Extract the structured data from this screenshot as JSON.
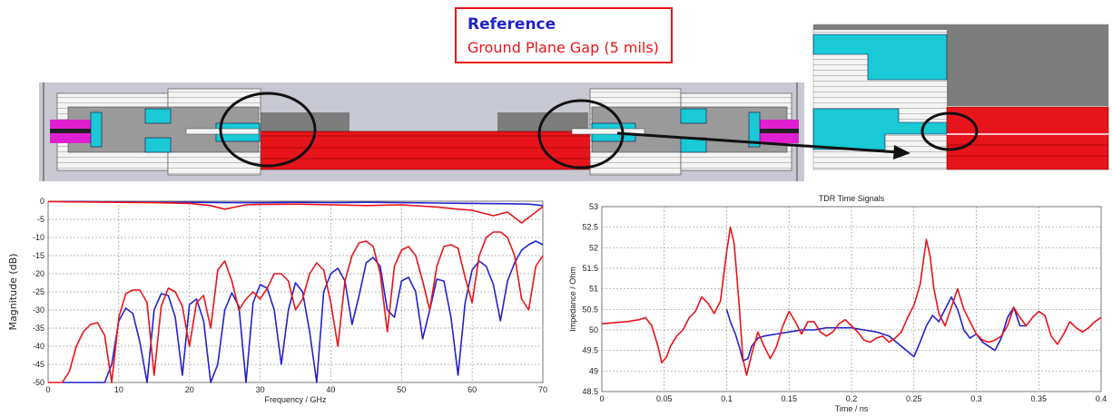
{
  "legend": {
    "reference_label": "Reference",
    "gap_label": "Ground Plane Gap (5 mils)"
  },
  "colors": {
    "reference": "#2222cc",
    "ground_plane_gap": "#e8141b",
    "grid": "#9a9a9a"
  },
  "chart_data": [
    {
      "type": "line",
      "title": "",
      "xlabel": "Frequency / GHz",
      "ylabel": "Magnitude (dB)",
      "xlim": [
        0,
        70
      ],
      "ylim": [
        -50,
        0
      ],
      "xticks": [
        0,
        10,
        20,
        30,
        40,
        50,
        60,
        70
      ],
      "yticks": [
        0,
        -5,
        -10,
        -15,
        -20,
        -25,
        -30,
        -35,
        -40,
        -45,
        -50
      ],
      "grid": true,
      "series": [
        {
          "color": "#2222cc",
          "style": "S21",
          "x": [
            2,
            5,
            8,
            10,
            12,
            14,
            17,
            20,
            25,
            30,
            35,
            40,
            45,
            50,
            55,
            60,
            65,
            68,
            70
          ],
          "y": [
            -0.1,
            -0.1,
            -0.2,
            -0.2,
            -0.2,
            -0.3,
            -0.3,
            -0.3,
            -0.4,
            -0.4,
            -0.3,
            -0.4,
            -0.3,
            -0.4,
            -0.5,
            -0.6,
            -0.7,
            -0.8,
            -1.2
          ]
        },
        {
          "color": "#e8141b",
          "style": "S21",
          "x": [
            0,
            5,
            10,
            15,
            20,
            23,
            25,
            28,
            30,
            35,
            40,
            45,
            50,
            55,
            58,
            60,
            63,
            65,
            67,
            68,
            70
          ],
          "y": [
            -0.1,
            -0.2,
            -0.3,
            -0.4,
            -0.6,
            -1.2,
            -2.2,
            -1.0,
            -0.9,
            -0.8,
            -1.0,
            -1.2,
            -1.0,
            -1.6,
            -2.2,
            -2.5,
            -4.0,
            -3.0,
            -6.0,
            -4.5,
            -1.5
          ]
        },
        {
          "color": "#2222cc",
          "style": "S11",
          "x": [
            2,
            4,
            6,
            8,
            9,
            10,
            11,
            12,
            13,
            14,
            15,
            16,
            17,
            18,
            19,
            20,
            21,
            22,
            23,
            24,
            25,
            26,
            27,
            28,
            29,
            30,
            31,
            32,
            33,
            34,
            35,
            36,
            37,
            38,
            39,
            40,
            41,
            42,
            43,
            44,
            45,
            46,
            47,
            48,
            49,
            50,
            51,
            52,
            53,
            54,
            55,
            56,
            57,
            58,
            59,
            60,
            61,
            62,
            63,
            64,
            65,
            66,
            67,
            68,
            69,
            70
          ],
          "y": [
            -50,
            -50,
            -50,
            -50,
            -45,
            -33,
            -29.5,
            -31,
            -39,
            -50,
            -30,
            -25.5,
            -26,
            -32,
            -48,
            -28.5,
            -27,
            -33,
            -50,
            -45,
            -30,
            -25.3,
            -29,
            -50,
            -28,
            -23,
            -24,
            -30,
            -45,
            -30,
            -22.5,
            -25,
            -36,
            -50,
            -25,
            -20,
            -18.5,
            -22,
            -34,
            -26,
            -17,
            -15.5,
            -18,
            -30,
            -32,
            -22,
            -21,
            -25,
            -38,
            -30,
            -21.5,
            -22,
            -32,
            -48,
            -28,
            -19,
            -16.5,
            -18,
            -23,
            -33,
            -22,
            -17,
            -13.5,
            -12,
            -11,
            -12
          ]
        },
        {
          "color": "#e8141b",
          "style": "S11",
          "x": [
            0,
            2,
            3,
            4,
            5,
            6,
            7,
            8,
            9,
            10,
            11,
            12,
            13,
            14,
            15,
            16,
            17,
            18,
            19,
            20,
            21,
            22,
            23,
            24,
            25,
            26,
            27,
            28,
            29,
            30,
            31,
            32,
            33,
            34,
            35,
            36,
            37,
            38,
            39,
            40,
            41,
            42,
            43,
            44,
            45,
            46,
            47,
            48,
            49,
            50,
            51,
            52,
            53,
            54,
            55,
            56,
            57,
            58,
            59,
            60,
            61,
            62,
            63,
            64,
            65,
            66,
            67,
            68,
            69,
            70
          ],
          "y": [
            -50,
            -50,
            -47,
            -40,
            -36,
            -34,
            -33.5,
            -37,
            -50,
            -32,
            -25.5,
            -24.5,
            -24.5,
            -28,
            -48,
            -29,
            -24,
            -25,
            -29,
            -40,
            -28,
            -26,
            -35,
            -19,
            -16.5,
            -22,
            -30,
            -27,
            -25,
            -27,
            -24,
            -20,
            -20,
            -22,
            -30,
            -27,
            -20,
            -17,
            -19,
            -28,
            -40,
            -22,
            -15,
            -11.5,
            -11,
            -12.5,
            -20,
            -36,
            -18,
            -13.5,
            -12.5,
            -15,
            -22,
            -30,
            -18,
            -12.5,
            -12,
            -13,
            -21,
            -28,
            -15,
            -10,
            -8.5,
            -8.5,
            -10,
            -15,
            -27,
            -30,
            -18,
            -15
          ]
        }
      ]
    },
    {
      "type": "line",
      "title": "TDR Time Signals",
      "xlabel": "Time / ns",
      "ylabel": "Impedance / Ohm",
      "xlim": [
        0,
        0.4
      ],
      "ylim": [
        48.5,
        53
      ],
      "xticks": [
        0,
        0.05,
        0.1,
        0.15,
        0.2,
        0.25,
        0.3,
        0.35,
        0.4
      ],
      "yticks": [
        53,
        52.5,
        52,
        51.5,
        51,
        50.5,
        50,
        49.5,
        49,
        48.5
      ],
      "grid": true,
      "series": [
        {
          "color": "#2222cc",
          "x": [
            0.1,
            0.103,
            0.107,
            0.11,
            0.113,
            0.117,
            0.12,
            0.125,
            0.13,
            0.14,
            0.15,
            0.16,
            0.17,
            0.18,
            0.19,
            0.2,
            0.21,
            0.22,
            0.23,
            0.24,
            0.25,
            0.255,
            0.26,
            0.265,
            0.27,
            0.275,
            0.28,
            0.285,
            0.29,
            0.295,
            0.3,
            0.305,
            0.31,
            0.315,
            0.32,
            0.325,
            0.33,
            0.335,
            0.34
          ],
          "y": [
            50.5,
            50.2,
            49.9,
            49.6,
            49.25,
            49.3,
            49.6,
            49.8,
            49.85,
            49.9,
            49.95,
            50.0,
            50.0,
            50.05,
            50.05,
            50.05,
            50.0,
            49.95,
            49.85,
            49.6,
            49.35,
            49.7,
            50.1,
            50.35,
            50.2,
            50.5,
            50.8,
            50.5,
            50.0,
            49.8,
            49.9,
            49.7,
            49.6,
            49.5,
            49.8,
            50.3,
            50.55,
            50.1,
            50.1
          ]
        },
        {
          "color": "#e8141b",
          "x": [
            0,
            0.02,
            0.03,
            0.035,
            0.04,
            0.045,
            0.048,
            0.052,
            0.055,
            0.06,
            0.065,
            0.07,
            0.075,
            0.08,
            0.085,
            0.09,
            0.095,
            0.1,
            0.103,
            0.106,
            0.11,
            0.113,
            0.116,
            0.12,
            0.125,
            0.13,
            0.135,
            0.14,
            0.145,
            0.15,
            0.155,
            0.16,
            0.165,
            0.17,
            0.175,
            0.18,
            0.185,
            0.19,
            0.195,
            0.2,
            0.205,
            0.21,
            0.215,
            0.22,
            0.225,
            0.23,
            0.235,
            0.24,
            0.245,
            0.25,
            0.255,
            0.26,
            0.263,
            0.266,
            0.27,
            0.275,
            0.28,
            0.285,
            0.29,
            0.295,
            0.3,
            0.305,
            0.31,
            0.315,
            0.32,
            0.325,
            0.33,
            0.335,
            0.34,
            0.345,
            0.35,
            0.355,
            0.36,
            0.365,
            0.37,
            0.375,
            0.38,
            0.385,
            0.39,
            0.395,
            0.4
          ],
          "y": [
            50.15,
            50.2,
            50.25,
            50.3,
            50.1,
            49.6,
            49.2,
            49.35,
            49.6,
            49.85,
            50.0,
            50.3,
            50.45,
            50.8,
            50.65,
            50.4,
            50.7,
            51.9,
            52.5,
            52.1,
            50.6,
            49.3,
            48.9,
            49.4,
            49.95,
            49.6,
            49.3,
            49.6,
            50.1,
            50.45,
            50.2,
            49.9,
            50.2,
            50.2,
            49.95,
            49.85,
            49.95,
            50.15,
            50.25,
            50.1,
            49.95,
            49.75,
            49.7,
            49.8,
            49.85,
            49.7,
            49.8,
            49.95,
            50.3,
            50.6,
            51.1,
            52.2,
            51.8,
            51.0,
            50.4,
            50.1,
            50.55,
            51.0,
            50.5,
            50.2,
            49.9,
            49.75,
            49.7,
            49.75,
            49.85,
            50.1,
            50.55,
            50.3,
            50.1,
            50.3,
            50.45,
            50.35,
            49.85,
            49.65,
            49.9,
            50.2,
            50.05,
            49.95,
            50.05,
            50.2,
            50.3
          ]
        }
      ]
    }
  ]
}
